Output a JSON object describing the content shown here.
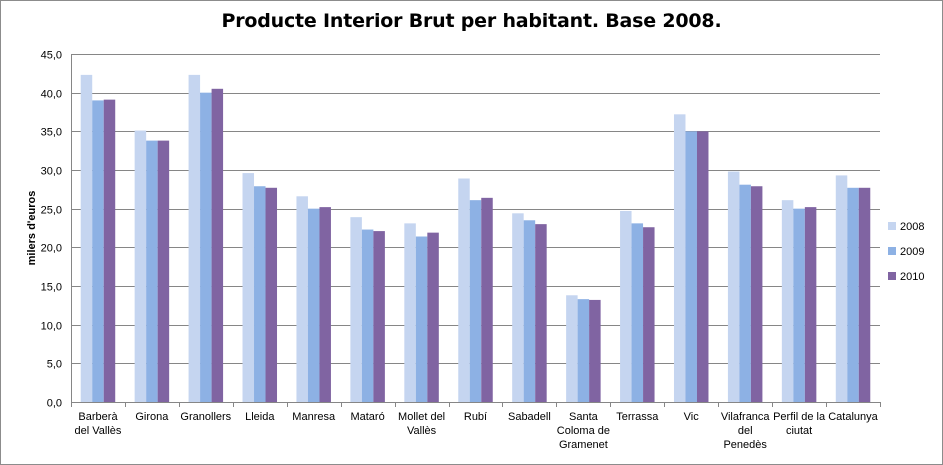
{
  "chart_data": {
    "type": "bar",
    "title": "Producte Interior Brut per habitant.  Base 2008.",
    "xlabel": "",
    "ylabel": "milers d'euros",
    "ylim": [
      0,
      45
    ],
    "yticks": [
      "0,0",
      "5,0",
      "10,0",
      "15,0",
      "20,0",
      "25,0",
      "30,0",
      "35,0",
      "40,0",
      "45,0"
    ],
    "grid": true,
    "legend_position": "right",
    "categories": [
      [
        "Barberà",
        "del Vallès"
      ],
      [
        "Girona"
      ],
      [
        "Granollers"
      ],
      [
        "Lleida"
      ],
      [
        "Manresa"
      ],
      [
        "Mataró"
      ],
      [
        "Mollet del",
        "Vallès"
      ],
      [
        "Rubí"
      ],
      [
        "Sabadell"
      ],
      [
        "Santa",
        "Coloma de",
        "Gramenet"
      ],
      [
        "Terrassa"
      ],
      [
        "Vic"
      ],
      [
        "Vilafranca",
        "del",
        "Penedès"
      ],
      [
        "Perfil de la",
        "ciutat"
      ],
      [
        "Catalunya"
      ]
    ],
    "series": [
      {
        "name": "2008",
        "color": "#c5d5f0",
        "values": [
          42.3,
          35.1,
          42.3,
          29.6,
          26.6,
          23.9,
          23.1,
          28.9,
          24.4,
          13.8,
          24.7,
          37.2,
          29.8,
          26.1,
          29.3
        ]
      },
      {
        "name": "2009",
        "color": "#8db1e4",
        "values": [
          39.0,
          33.8,
          40.0,
          27.9,
          25.0,
          22.3,
          21.4,
          26.1,
          23.5,
          13.3,
          23.1,
          35.0,
          28.1,
          25.0,
          27.7
        ]
      },
      {
        "name": "2010",
        "color": "#8064a2",
        "values": [
          39.1,
          33.8,
          40.5,
          27.7,
          25.2,
          22.1,
          21.9,
          26.4,
          23.0,
          13.2,
          22.6,
          35.0,
          27.9,
          25.2,
          27.7
        ]
      }
    ]
  }
}
